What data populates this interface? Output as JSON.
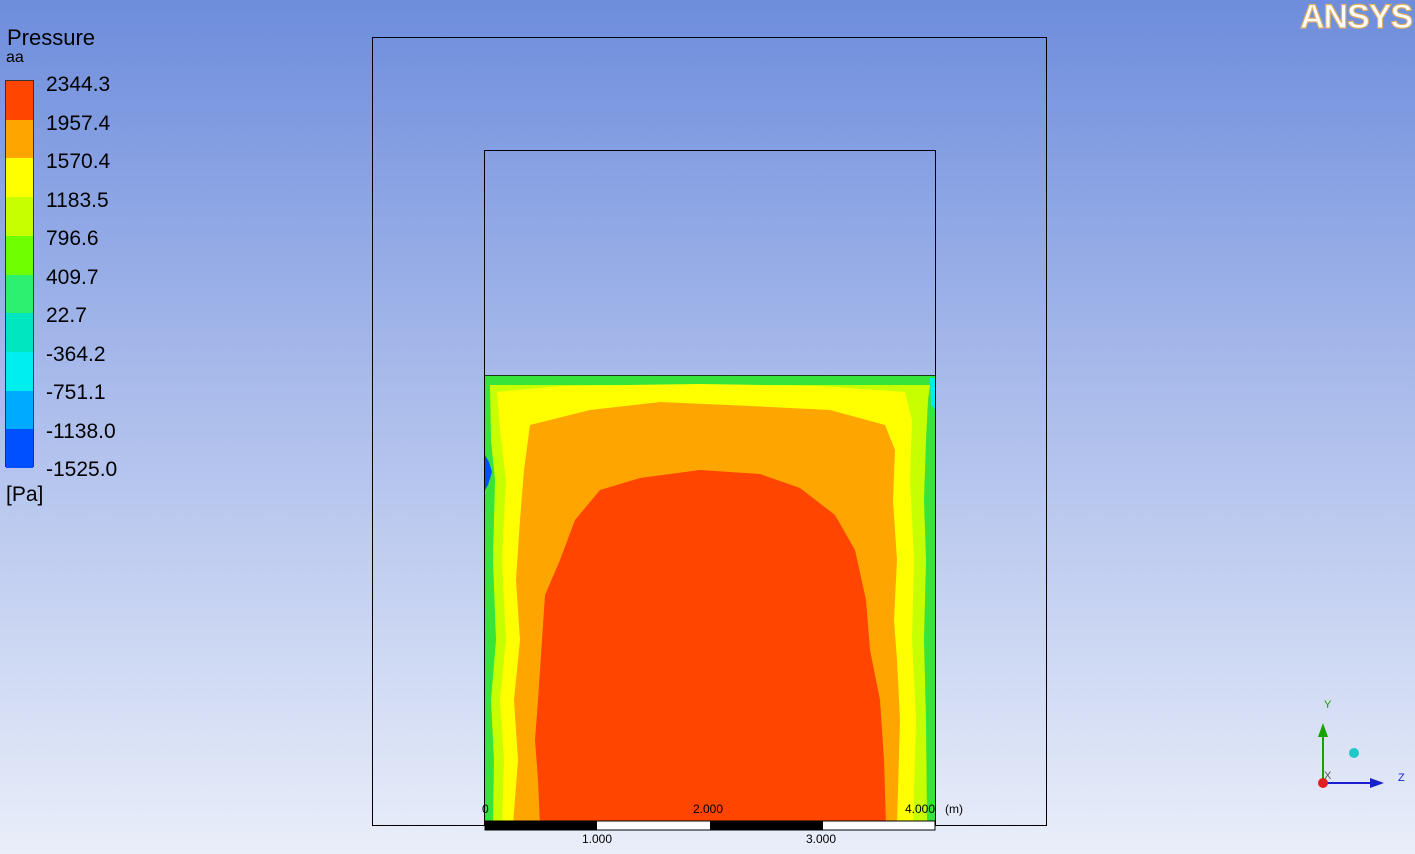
{
  "legend": {
    "title": "Pressure",
    "subtitle": "aa",
    "unit": "[Pa]",
    "labels": [
      "2344.3",
      "1957.4",
      "1570.4",
      "1183.5",
      "796.6",
      "409.7",
      "22.7",
      "-364.2",
      "-751.1",
      "-1138.0",
      "-1525.0"
    ],
    "colors": [
      "#ff4500",
      "#ffa500",
      "#ffff00",
      "#c8ff00",
      "#70ff00",
      "#2ef070",
      "#00e6c0",
      "#00eeee",
      "#00aaff",
      "#0050ff"
    ]
  },
  "logo": {
    "text": "ANSYS"
  },
  "scale": {
    "ticks_top": [
      "0",
      "2.000",
      "4.000"
    ],
    "unit": "(m)",
    "ticks_bottom": [
      "1.000",
      "3.000"
    ]
  },
  "axes": {
    "y": "Y",
    "z": "Z",
    "x": "X"
  },
  "contour_colors": {
    "green": "#36e43a",
    "yellow_green": "#c8ff00",
    "yellow": "#ffff00",
    "orange": "#ffa500",
    "red": "#ff4500"
  }
}
